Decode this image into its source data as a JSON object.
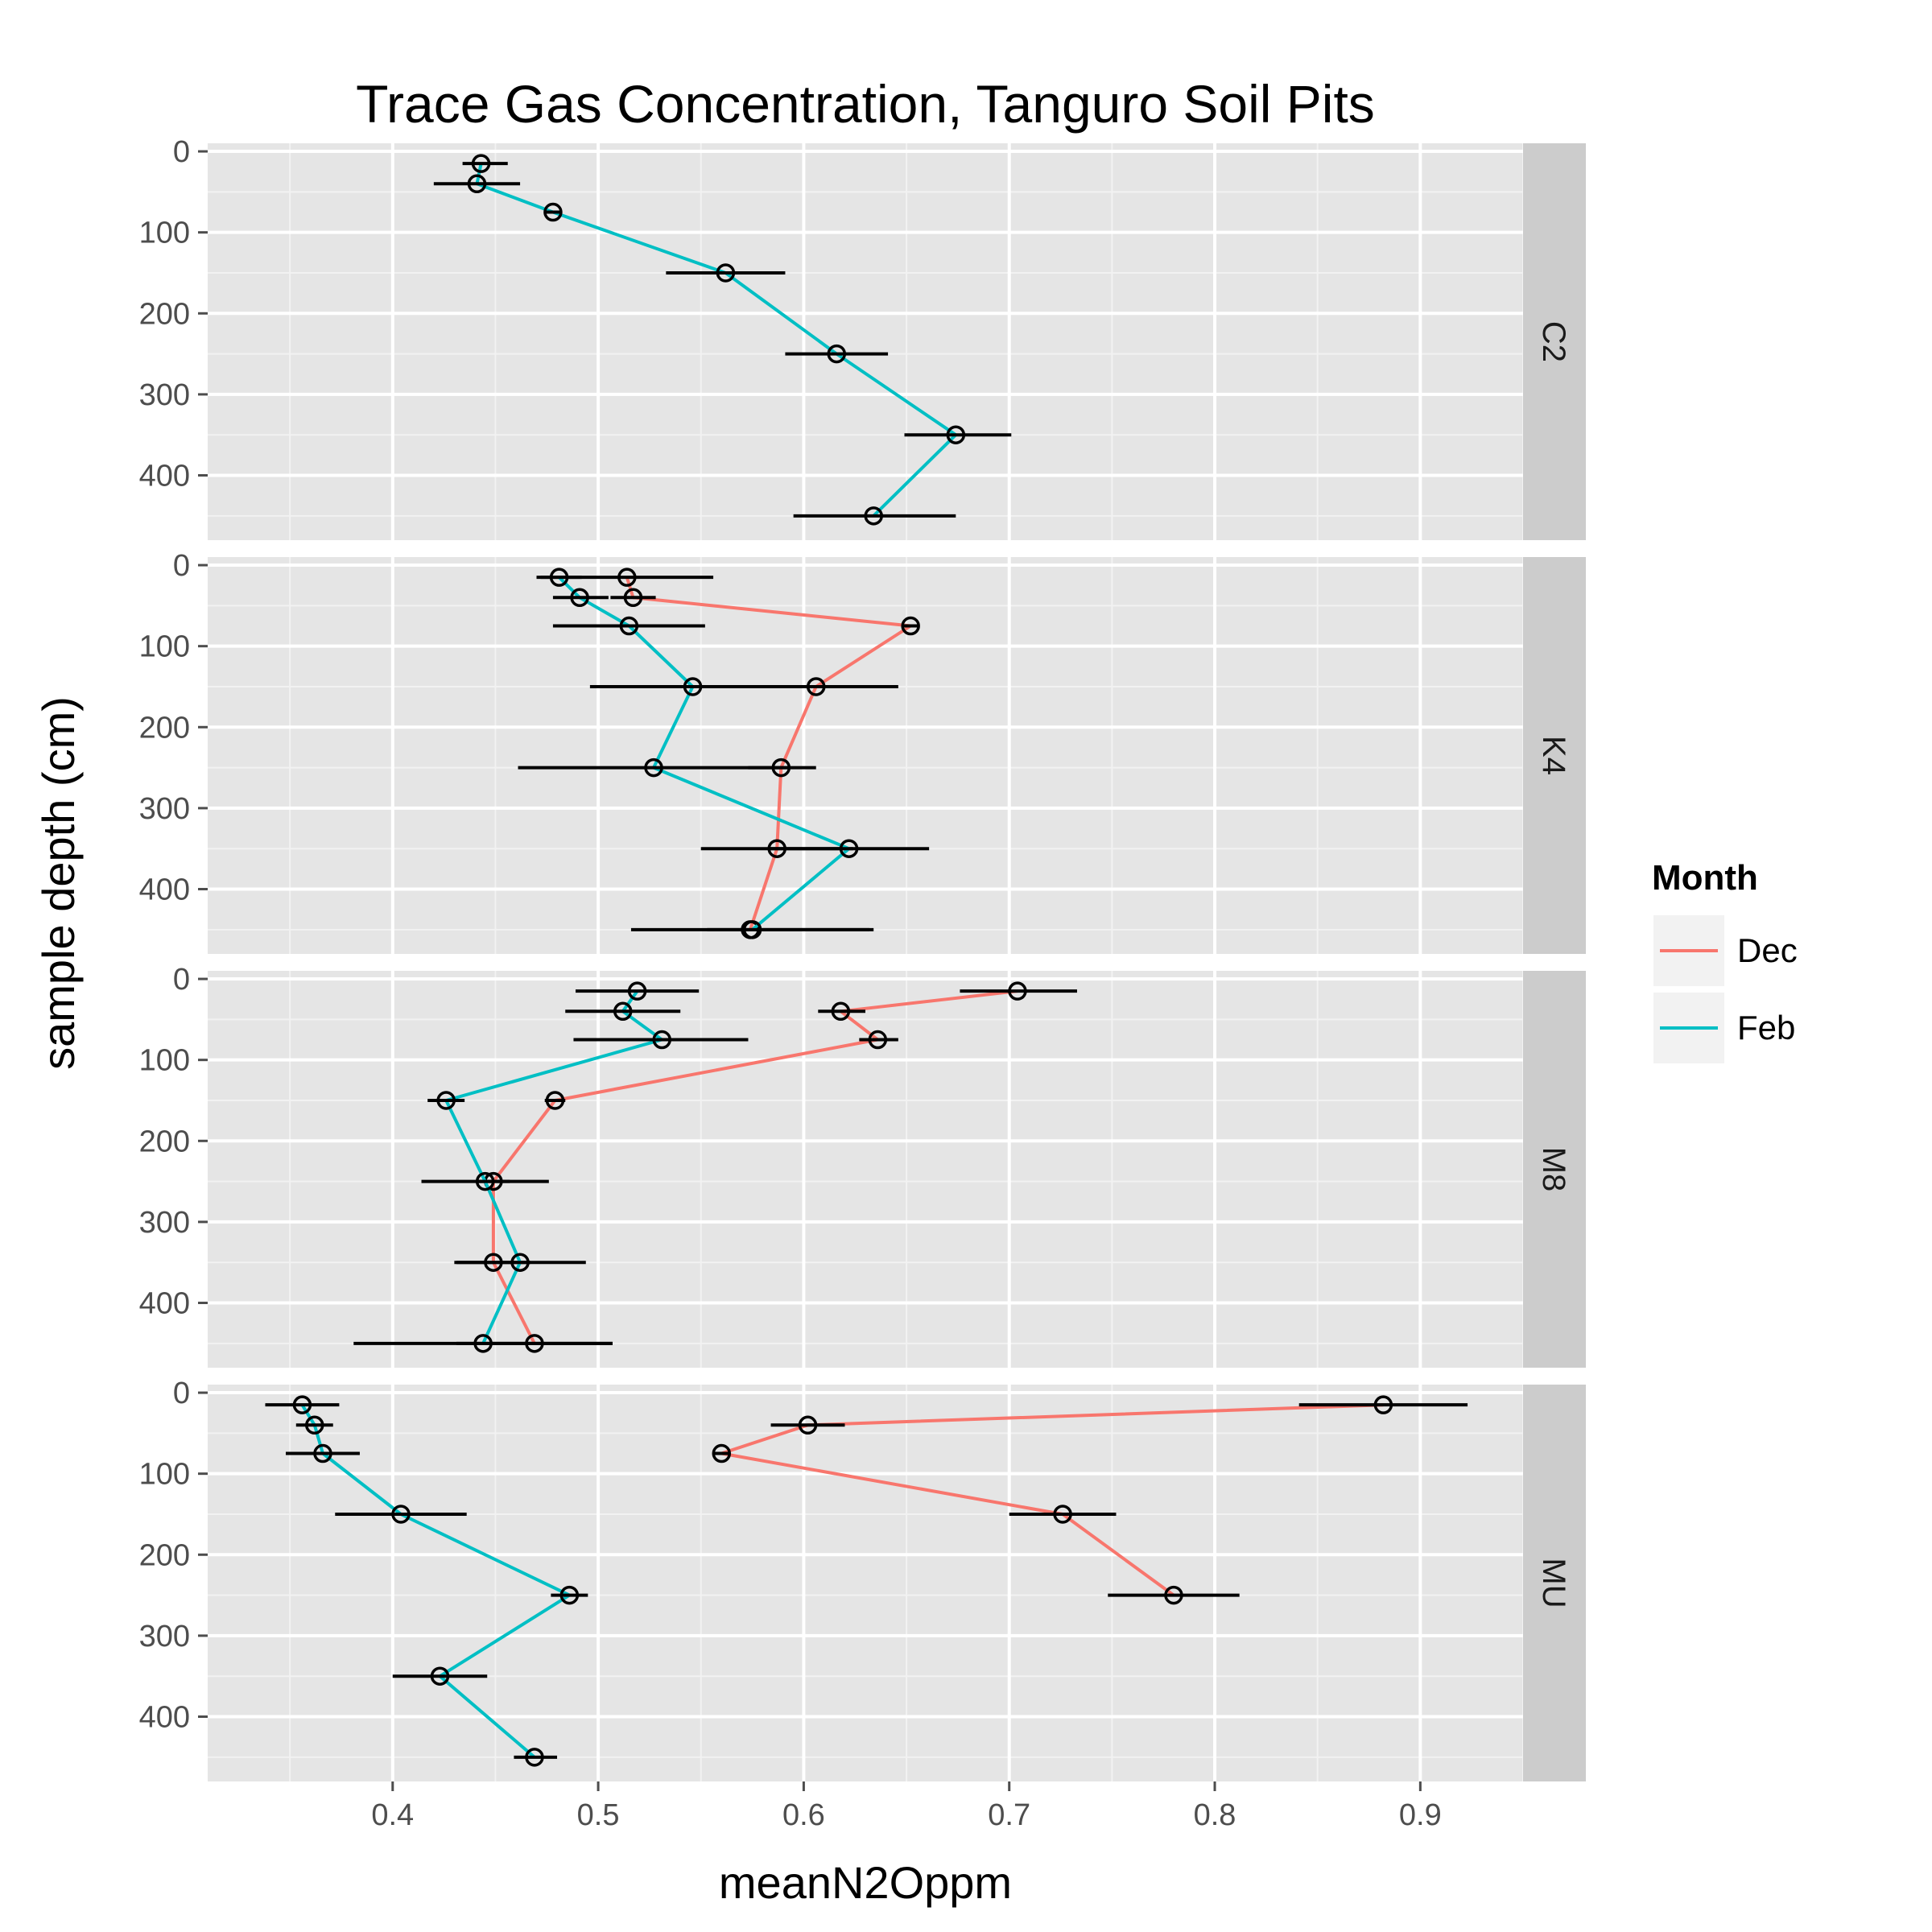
{
  "chart_data": {
    "type": "line",
    "title": "Trace Gas Concentration, Tanguro Soil Pits",
    "xlabel": "meanN2Oppm",
    "ylabel": "sample depth (cm)",
    "xlim": [
      0.31,
      0.95
    ],
    "ylim": [
      480,
      -10
    ],
    "x_ticks": [
      "0.4",
      "0.5",
      "0.6",
      "0.7",
      "0.8",
      "0.9"
    ],
    "y_ticks": [
      "0",
      "100",
      "200",
      "300",
      "400"
    ],
    "y_reversed": true,
    "grid": true,
    "legend": {
      "title": "Month",
      "position": "right",
      "entries": [
        "Dec",
        "Feb"
      ]
    },
    "colors": {
      "Dec": "#f8766d",
      "Feb": "#00bfc4",
      "errorbar": "#000000",
      "panel_bg": "#e5e5e5",
      "strip_bg": "#cccccc",
      "grid": "#ffffff"
    },
    "panels": [
      {
        "label": "C2",
        "series": [
          {
            "name": "Feb",
            "points": [
              {
                "depth": 15,
                "x": 0.443,
                "err": [
                  0.434,
                  0.456
                ]
              },
              {
                "depth": 40,
                "x": 0.441,
                "err": [
                  0.42,
                  0.462
                ]
              },
              {
                "depth": 75,
                "x": 0.478,
                "err": [
                  0.474,
                  0.482
                ]
              },
              {
                "depth": 150,
                "x": 0.562,
                "err": [
                  0.533,
                  0.591
                ]
              },
              {
                "depth": 250,
                "x": 0.616,
                "err": [
                  0.591,
                  0.641
                ]
              },
              {
                "depth": 350,
                "x": 0.674,
                "err": [
                  0.649,
                  0.701
                ]
              },
              {
                "depth": 450,
                "x": 0.634,
                "err": [
                  0.595,
                  0.674
                ]
              }
            ]
          }
        ]
      },
      {
        "label": "K4",
        "series": [
          {
            "name": "Dec",
            "points": [
              {
                "depth": 15,
                "x": 0.514,
                "err": [
                  0.472,
                  0.556
                ]
              },
              {
                "depth": 40,
                "x": 0.517,
                "err": [
                  0.506,
                  0.528
                ]
              },
              {
                "depth": 75,
                "x": 0.652,
                "err": [
                  0.648,
                  0.656
                ]
              },
              {
                "depth": 150,
                "x": 0.606,
                "err": [
                  0.566,
                  0.646
                ]
              },
              {
                "depth": 250,
                "x": 0.589,
                "err": [
                  0.573,
                  0.606
                ]
              },
              {
                "depth": 350,
                "x": 0.587,
                "err": [
                  0.55,
                  0.624
                ]
              },
              {
                "depth": 450,
                "x": 0.574,
                "err": [
                  0.516,
                  0.632
                ]
              }
            ]
          },
          {
            "name": "Feb",
            "points": [
              {
                "depth": 15,
                "x": 0.481,
                "err": [
                  0.47,
                  0.492
                ]
              },
              {
                "depth": 40,
                "x": 0.491,
                "err": [
                  0.478,
                  0.505
                ]
              },
              {
                "depth": 75,
                "x": 0.515,
                "err": [
                  0.478,
                  0.552
                ]
              },
              {
                "depth": 150,
                "x": 0.546,
                "err": [
                  0.496,
                  0.597
                ]
              },
              {
                "depth": 250,
                "x": 0.527,
                "err": [
                  0.461,
                  0.593
                ]
              },
              {
                "depth": 350,
                "x": 0.622,
                "err": [
                  0.583,
                  0.661
                ]
              },
              {
                "depth": 450,
                "x": 0.575,
                "err": [
                  0.553,
                  0.634
                ]
              }
            ]
          }
        ]
      },
      {
        "label": "M8",
        "series": [
          {
            "name": "Dec",
            "points": [
              {
                "depth": 15,
                "x": 0.704,
                "err": [
                  0.676,
                  0.733
                ]
              },
              {
                "depth": 40,
                "x": 0.618,
                "err": [
                  0.607,
                  0.63
                ]
              },
              {
                "depth": 75,
                "x": 0.636,
                "err": [
                  0.627,
                  0.646
                ]
              },
              {
                "depth": 150,
                "x": 0.479,
                "err": [
                  0.474,
                  0.484
                ]
              },
              {
                "depth": 250,
                "x": 0.449,
                "err": [
                  0.441,
                  0.457
                ]
              },
              {
                "depth": 350,
                "x": 0.449,
                "err": [
                  0.431,
                  0.467
                ]
              },
              {
                "depth": 450,
                "x": 0.469,
                "err": [
                  0.431,
                  0.507
                ]
              }
            ]
          },
          {
            "name": "Feb",
            "points": [
              {
                "depth": 15,
                "x": 0.519,
                "err": [
                  0.489,
                  0.549
                ]
              },
              {
                "depth": 40,
                "x": 0.512,
                "err": [
                  0.484,
                  0.54
                ]
              },
              {
                "depth": 75,
                "x": 0.531,
                "err": [
                  0.488,
                  0.573
                ]
              },
              {
                "depth": 150,
                "x": 0.426,
                "err": [
                  0.417,
                  0.435
                ]
              },
              {
                "depth": 250,
                "x": 0.445,
                "err": [
                  0.414,
                  0.476
                ]
              },
              {
                "depth": 350,
                "x": 0.462,
                "err": [
                  0.43,
                  0.494
                ]
              },
              {
                "depth": 450,
                "x": 0.444,
                "err": [
                  0.381,
                  0.507
                ]
              }
            ]
          }
        ]
      },
      {
        "label": "MU",
        "series": [
          {
            "name": "Dec",
            "points": [
              {
                "depth": 15,
                "x": 0.882,
                "err": [
                  0.841,
                  0.923
                ]
              },
              {
                "depth": 40,
                "x": 0.602,
                "err": [
                  0.584,
                  0.62
                ]
              },
              {
                "depth": 75,
                "x": 0.56,
                "err": [
                  0.556,
                  0.564
                ]
              },
              {
                "depth": 150,
                "x": 0.726,
                "err": [
                  0.7,
                  0.752
                ]
              },
              {
                "depth": 250,
                "x": 0.78,
                "err": [
                  0.748,
                  0.812
                ]
              }
            ]
          },
          {
            "name": "Feb",
            "points": [
              {
                "depth": 15,
                "x": 0.356,
                "err": [
                  0.338,
                  0.374
                ]
              },
              {
                "depth": 40,
                "x": 0.362,
                "err": [
                  0.353,
                  0.371
                ]
              },
              {
                "depth": 75,
                "x": 0.366,
                "err": [
                  0.348,
                  0.384
                ]
              },
              {
                "depth": 150,
                "x": 0.404,
                "err": [
                  0.372,
                  0.436
                ]
              },
              {
                "depth": 250,
                "x": 0.486,
                "err": [
                  0.477,
                  0.495
                ]
              },
              {
                "depth": 350,
                "x": 0.423,
                "err": [
                  0.4,
                  0.446
                ]
              },
              {
                "depth": 450,
                "x": 0.469,
                "err": [
                  0.459,
                  0.48
                ]
              }
            ]
          }
        ]
      }
    ]
  }
}
